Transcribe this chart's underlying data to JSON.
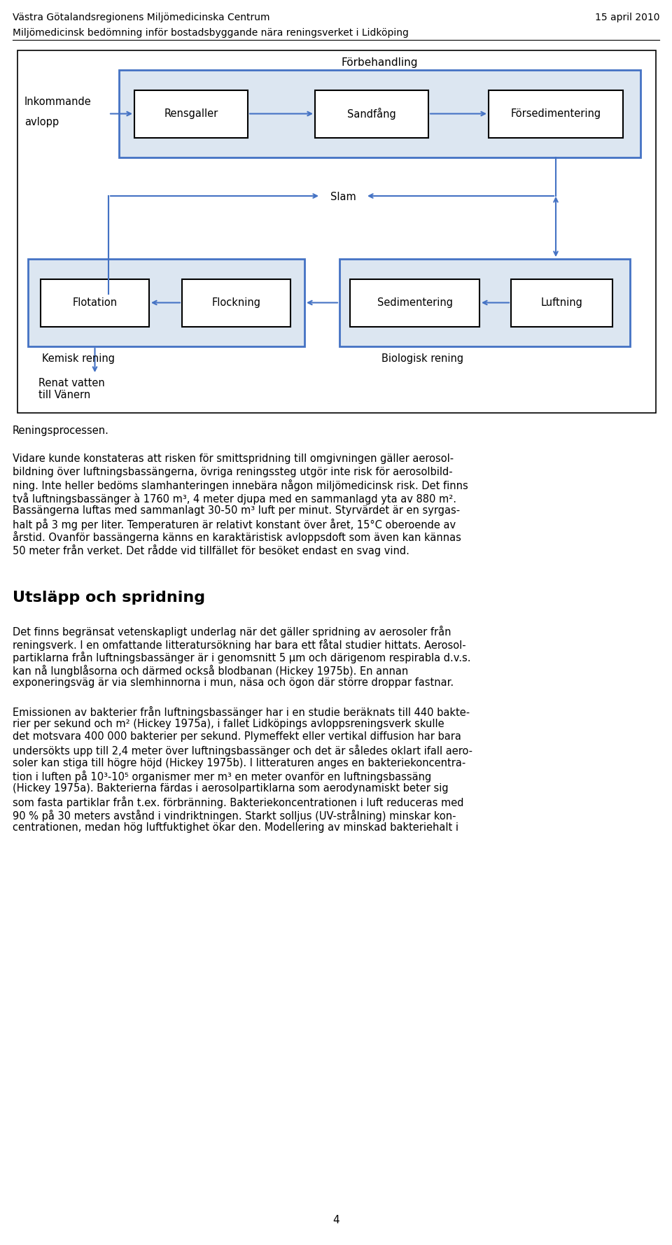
{
  "header_left": "Västra Götalandsregionens Miljömedicinska Centrum",
  "header_right": "15 april 2010",
  "subheader": "Miljömedicinsk bedömning inför bostadsbyggande nära reningsverket i Lidköping",
  "diagram_caption": "Reningsprocessen.",
  "forbehandling_label": "Förbehandling",
  "box1": "Rensgaller",
  "box2": "Sandfång",
  "box3": "Försedimentering",
  "slam_label": "Slam",
  "box4": "Flotation",
  "box5": "Flockning",
  "box6": "Sedimentering",
  "box7": "Luftning",
  "kemisk_label": "Kemisk rening",
  "biologisk_label": "Biologisk rening",
  "inkommande_line1": "Inkommande",
  "inkommande_line2": "avlopp",
  "renat_line1": "Renat vatten",
  "renat_line2": "till Vänern",
  "para1_lines": [
    "Vidare kunde konstateras att risken för smittspridning till omgivningen gäller aerosol-",
    "bildning över luftningsbassängerna, övriga reningssteg utgör inte risk för aerosolbild-",
    "ning. Inte heller bedöms slamhanteringen innebära någon miljömedicinsk risk. Det finns",
    "två luftningsbassänger à 1760 m³, 4 meter djupa med en sammanlagd yta av 880 m².",
    "Bassängerna luftas med sammanlagt 30-50 m³ luft per minut. Styrvärdet är en syrgas-",
    "halt på 3 mg per liter. Temperaturen är relativt konstant över året, 15°C oberoende av",
    "årstid. Ovanför bassängerna känns en karaktäristisk avloppsdoft som även kan kännas",
    "50 meter från verket. Det rådde vid tillfället för besöket endast en svag vind."
  ],
  "section_title": "Utsläpp och spridning",
  "para2_lines": [
    "Det finns begränsat vetenskapligt underlag när det gäller spridning av aerosoler från",
    "reningsverk. I en omfattande litteratursökning har bara ett fåtal studier hittats. Aerosol-",
    "partiklarna från luftningsbassänger är i genomsnitt 5 µm och därigenom respirabla d.v.s.",
    "kan nå lungblåsorna och därmed också blodbanan (Hickey 1975b). En annan",
    "exponeringsväg är via slemhinnorna i mun, näsa och ögon där större droppar fastnar."
  ],
  "para3_lines": [
    "Emissionen av bakterier från luftningsbassänger har i en studie beräknats till 440 bakte-",
    "rier per sekund och m² (Hickey 1975a), i fallet Lidköpings avloppsreningsverk skulle",
    "det motsvara 400 000 bakterier per sekund. Plymeffekt eller vertikal diffusion har bara",
    "undersökts upp till 2,4 meter över luftningsbassänger och det är således oklart ifall aero-",
    "soler kan stiga till högre höjd (Hickey 1975b). I litteraturen anges en bakteriekoncentra-",
    "tion i luften på 10³-10⁵ organismer mer m³ en meter ovanför en luftningsbassäng",
    "(Hickey 1975a). Bakterierna färdas i aerosolpartiklarna som aerodynamiskt beter sig",
    "som fasta partiklar från t.ex. förbränning. Bakteriekoncentrationen i luft reduceras med",
    "90 % på 30 meters avstånd i vindriktningen. Starkt solljus (UV-strålning) minskar kon-",
    "centrationen, medan hög luftfuktighet ökar den. Modellering av minskad bakteriehalt i"
  ],
  "page_number": "4",
  "bg_color": "#ffffff",
  "box_fill": "#dce6f1",
  "box_stroke": "#4472c4",
  "arrow_color": "#4472c4"
}
